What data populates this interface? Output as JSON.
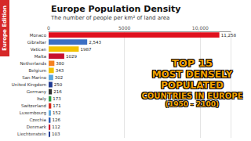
{
  "chart_data": {
    "type": "bar",
    "orientation": "horizontal",
    "title": "Europe Population Density",
    "subtitle": "The number of people per km² of land area",
    "categories": [
      "Monaco",
      "Gibraltar",
      "Vatican",
      "Malta",
      "Netherlands",
      "Belgium",
      "San Marino",
      "United Kingdom",
      "Germany",
      "Italy",
      "Switzerland",
      "Luxembourg",
      "Czechia",
      "Denmark",
      "Liechtenstein"
    ],
    "values": [
      11258,
      2543,
      1987,
      1029,
      380,
      343,
      302,
      250,
      216,
      173,
      171,
      152,
      126,
      112,
      103
    ],
    "value_labels": [
      "11,258",
      "2,543",
      "1987",
      "1029",
      "380",
      "343",
      "302",
      "250",
      "216",
      "173",
      "171",
      "152",
      "126",
      "112",
      "103"
    ],
    "colors": [
      "#e0101e",
      "#3b6fc4",
      "#f2c200",
      "#c8102e",
      "#f58220",
      "#f2c200",
      "#5aa7de",
      "#1f3a93",
      "#333333",
      "#2e9b45",
      "#d52b1e",
      "#5aa7de",
      "#2a5ab5",
      "#c8102e",
      "#1f3a93"
    ],
    "xlim": [
      0,
      12000
    ],
    "xticks": [
      0,
      5000,
      {
        "value": 10000,
        "label": "10,000"
      }
    ],
    "data_labels": true,
    "grid": true
  },
  "side_label": "Europe Edition",
  "headline": [
    "TOP 15",
    "MOST DENSELY",
    "POPULATED",
    "COUNTRIES IN EUROPE",
    "(1950 - 2100)"
  ]
}
